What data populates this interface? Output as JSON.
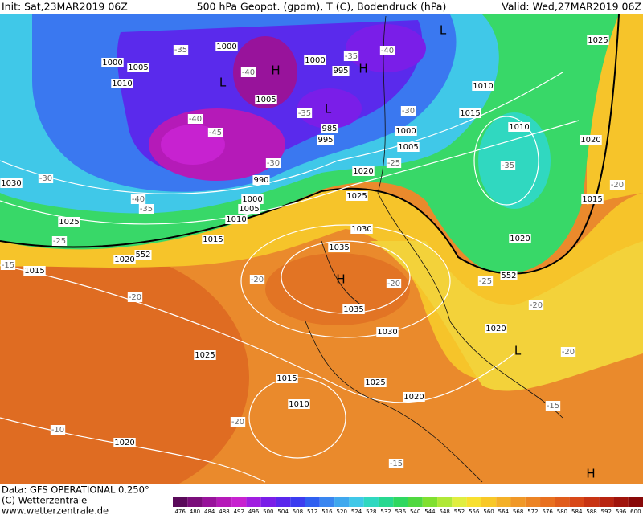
{
  "header": {
    "init": "Init: Sat,23MAR2019 06Z",
    "title": "500 hPa Geopot. (gpdm), T (C), Bodendruck (hPa)",
    "valid": "Valid: Wed,27MAR2019 06Z"
  },
  "footer": {
    "data": "Data: GFS OPERATIONAL 0.250°",
    "copyright": "(C) Wetterzentrale",
    "url": "www.wetterzentrale.de"
  },
  "scale": {
    "values": [
      476,
      480,
      484,
      488,
      492,
      496,
      500,
      504,
      508,
      512,
      516,
      520,
      524,
      528,
      532,
      536,
      540,
      544,
      548,
      552,
      556,
      560,
      564,
      568,
      572,
      576,
      580,
      584,
      588,
      592,
      596,
      600
    ],
    "colors": [
      "#5a0a5a",
      "#7a0e7a",
      "#98139b",
      "#b51ab8",
      "#c722d0",
      "#a01ee0",
      "#7a1ee8",
      "#5a28ec",
      "#3c3cf0",
      "#3060f0",
      "#3a86f0",
      "#40a8ee",
      "#40c8e8",
      "#30d8c0",
      "#28d890",
      "#30d860",
      "#50d840",
      "#80e030",
      "#b0e838",
      "#e0ee40",
      "#f8e030",
      "#f8c828",
      "#f4b028",
      "#f09828",
      "#ec8424",
      "#e87020",
      "#e05c1c",
      "#d84818",
      "#c83414",
      "#b82410",
      "#a0140c",
      "#880808"
    ]
  },
  "map_labels": {
    "isobars": [
      1000,
      1005,
      1010,
      1000,
      1000,
      995,
      1005,
      1010,
      1015,
      1010,
      1020,
      1025,
      1000,
      1005,
      985,
      995,
      990,
      1020,
      1025,
      1000,
      1005,
      1010,
      1015,
      1020,
      1025,
      1030,
      1015,
      1030,
      1035,
      1035,
      1030,
      1025,
      1015,
      1010,
      1025,
      1020,
      1020,
      1015,
      1020,
      1020
    ],
    "temperatures": [
      -35,
      -40,
      -35,
      -40,
      -30,
      -35,
      -40,
      -45,
      -30,
      -25,
      -30,
      -40,
      -35,
      -25,
      -20,
      -20,
      -25,
      -20,
      -20,
      -20,
      -20,
      -15,
      -15,
      -10,
      -20,
      -15,
      -35
    ],
    "contour_552": [
      552,
      552
    ],
    "pressure_centers": [
      "L",
      "H",
      "L",
      "H",
      "L",
      "H",
      "L",
      "H"
    ]
  }
}
